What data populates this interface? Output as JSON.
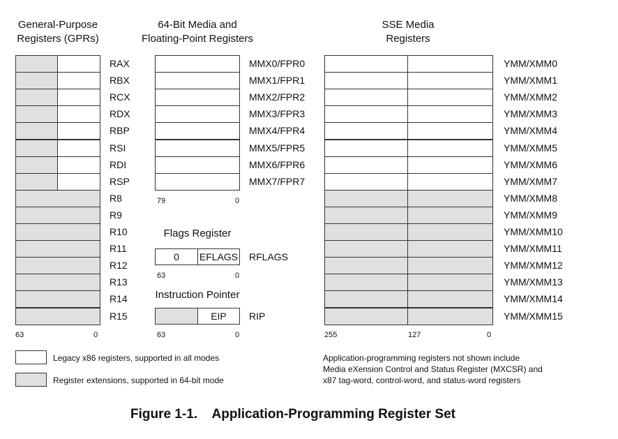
{
  "gpr": {
    "header": [
      "General-Purpose",
      "Registers (GPRs)"
    ],
    "registers": [
      "RAX",
      "RBX",
      "RCX",
      "RDX",
      "RBP",
      "RSI",
      "RDI",
      "RSP",
      "R8",
      "R9",
      "R10",
      "R11",
      "R12",
      "R13",
      "R14",
      "R15"
    ],
    "legacy_count": 8,
    "bit_hi": "63",
    "bit_lo": "0"
  },
  "mmx": {
    "header": [
      "64-Bit Media and",
      "Floating-Point Registers"
    ],
    "registers": [
      "MMX0/FPR0",
      "MMX1/FPR1",
      "MMX2/FPR2",
      "MMX3/FPR3",
      "MMX4/FPR4",
      "MMX5/FPR5",
      "MMX6/FPR6",
      "MMX7/FPR7"
    ],
    "bit_hi": "79",
    "bit_lo": "0"
  },
  "flags": {
    "header": "Flags Register",
    "left_text": "0",
    "right_text": "EFLAGS",
    "name": "RFLAGS",
    "bit_hi": "63",
    "bit_lo": "0"
  },
  "ip": {
    "header": "Instruction Pointer",
    "right_text": "EIP",
    "name": "RIP",
    "bit_hi": "63",
    "bit_lo": "0"
  },
  "sse": {
    "header": [
      "SSE Media",
      "Registers"
    ],
    "registers": [
      "YMM/XMM0",
      "YMM/XMM1",
      "YMM/XMM2",
      "YMM/XMM3",
      "YMM/XMM4",
      "YMM/XMM5",
      "YMM/XMM6",
      "YMM/XMM7",
      "YMM/XMM8",
      "YMM/XMM9",
      "YMM/XMM10",
      "YMM/XMM11",
      "YMM/XMM12",
      "YMM/XMM13",
      "YMM/XMM14",
      "YMM/XMM15"
    ],
    "legacy_count": 8,
    "bit_hi": "255",
    "bit_mid": "127",
    "bit_lo": "0"
  },
  "legend": {
    "legacy": "Legacy x86 registers, supported in all modes",
    "extension": "Register extensions, supported in 64-bit mode"
  },
  "note": [
    "Application-programming registers not shown include",
    "Media eXension Control and Status Register (MXCSR) and",
    "x87 tag-word, control-word, and status-word registers"
  ],
  "caption": "Figure 1-1.    Application-Programming Register Set",
  "colors": {
    "legacy_fill": "#ffffff",
    "extension_fill": "#e0e0e0",
    "border": "#333333"
  }
}
